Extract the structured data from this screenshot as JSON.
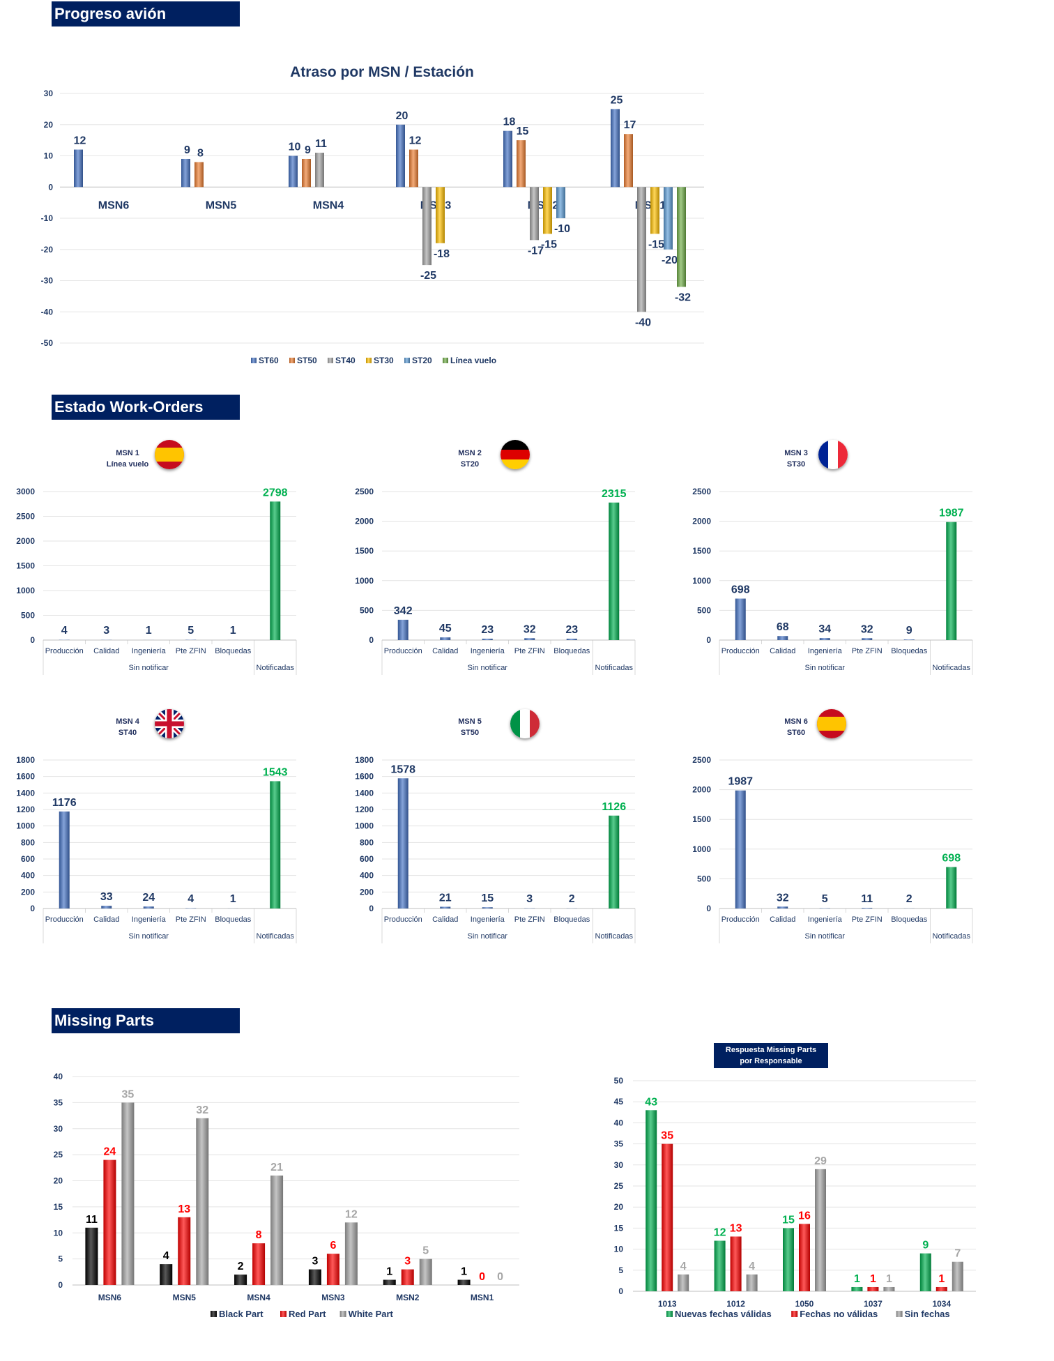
{
  "sections": {
    "progreso": "Progreso avión",
    "estado": "Estado Work-Orders",
    "missing": "Missing Parts"
  },
  "colors": {
    "header_bg": "#002060",
    "ST60": "#4472c4",
    "ST50": "#ed7d31",
    "ST40": "#a5a5a5",
    "ST30": "#ffc000",
    "ST20": "#5b9bd5",
    "Linea vuelo": "#70ad47",
    "wo_blue": "#4472c4",
    "wo_green": "#00b050",
    "black_part": "#000000",
    "red_part": "#ff0000",
    "white_part": "#a6a6a6",
    "green_resp": "#00b050"
  },
  "chart_data": [
    {
      "id": "atraso",
      "type": "bar",
      "title": "Atraso por MSN / Estación",
      "categories": [
        "MSN6",
        "MSN5",
        "MSN4",
        "MSN3",
        "MSN2",
        "MSN1"
      ],
      "ylim": [
        -50,
        30
      ],
      "yticks": [
        30,
        20,
        10,
        0,
        -10,
        -20,
        -30,
        -40,
        -50
      ],
      "grid": true,
      "legend_position": "bottom",
      "series": [
        {
          "name": "ST60",
          "values": [
            12,
            9,
            10,
            20,
            18,
            25
          ]
        },
        {
          "name": "ST50",
          "values": [
            null,
            8,
            9,
            12,
            15,
            17
          ]
        },
        {
          "name": "ST40",
          "values": [
            null,
            null,
            11,
            -25,
            -17,
            -40
          ]
        },
        {
          "name": "ST30",
          "values": [
            null,
            null,
            null,
            -18,
            -15,
            -15
          ]
        },
        {
          "name": "ST20",
          "values": [
            null,
            null,
            null,
            null,
            -10,
            -20
          ]
        },
        {
          "name": "Línea vuelo",
          "values": [
            null,
            null,
            null,
            null,
            null,
            -32
          ]
        }
      ]
    },
    {
      "id": "wo1",
      "type": "bar",
      "msn": "MSN 1",
      "station": "Línea vuelo",
      "flag": "es",
      "categories": [
        "Producción",
        "Calidad",
        "Ingeniería",
        "Pte ZFIN",
        "Bloquedas",
        "Notificadas"
      ],
      "group_label": "Sin notificar",
      "values": [
        4,
        3,
        1,
        5,
        1,
        2798
      ],
      "ylim": [
        0,
        3000
      ],
      "yticks": [
        0,
        500,
        1000,
        1500,
        2000,
        2500,
        3000
      ]
    },
    {
      "id": "wo2",
      "type": "bar",
      "msn": "MSN 2",
      "station": "ST20",
      "flag": "de",
      "categories": [
        "Producción",
        "Calidad",
        "Ingeniería",
        "Pte ZFIN",
        "Bloquedas",
        "Notificadas"
      ],
      "group_label": "Sin notificar",
      "values": [
        342,
        45,
        23,
        32,
        23,
        2315
      ],
      "ylim": [
        0,
        2500
      ],
      "yticks": [
        0,
        500,
        1000,
        1500,
        2000,
        2500
      ]
    },
    {
      "id": "wo3",
      "type": "bar",
      "msn": "MSN 3",
      "station": "ST30",
      "flag": "fr",
      "categories": [
        "Producción",
        "Calidad",
        "Ingeniería",
        "Pte ZFIN",
        "Bloquedas",
        "Notificadas"
      ],
      "group_label": "Sin notificar",
      "values": [
        698,
        68,
        34,
        32,
        9,
        1987
      ],
      "ylim": [
        0,
        2500
      ],
      "yticks": [
        0,
        500,
        1000,
        1500,
        2000,
        2500
      ]
    },
    {
      "id": "wo4",
      "type": "bar",
      "msn": "MSN 4",
      "station": "ST40",
      "flag": "uk",
      "categories": [
        "Producción",
        "Calidad",
        "Ingeniería",
        "Pte ZFIN",
        "Bloquedas",
        "Notificadas"
      ],
      "group_label": "Sin notificar",
      "values": [
        1176,
        33,
        24,
        4,
        1,
        1543
      ],
      "ylim": [
        0,
        1800
      ],
      "yticks": [
        0,
        200,
        400,
        600,
        800,
        1000,
        1200,
        1400,
        1600,
        1800
      ]
    },
    {
      "id": "wo5",
      "type": "bar",
      "msn": "MSN 5",
      "station": "ST50",
      "flag": "it",
      "categories": [
        "Producción",
        "Calidad",
        "Ingeniería",
        "Pte ZFIN",
        "Bloquedas",
        "Notificadas"
      ],
      "group_label": "Sin notificar",
      "values": [
        1578,
        21,
        15,
        3,
        2,
        1126
      ],
      "ylim": [
        0,
        1800
      ],
      "yticks": [
        0,
        200,
        400,
        600,
        800,
        1000,
        1200,
        1400,
        1600,
        1800
      ]
    },
    {
      "id": "wo6",
      "type": "bar",
      "msn": "MSN 6",
      "station": "ST60",
      "flag": "es",
      "categories": [
        "Producción",
        "Calidad",
        "Ingeniería",
        "Pte ZFIN",
        "Bloquedas",
        "Notificadas"
      ],
      "group_label": "Sin notificar",
      "values": [
        1987,
        32,
        5,
        11,
        2,
        698
      ],
      "ylim": [
        0,
        2500
      ],
      "yticks": [
        0,
        500,
        1000,
        1500,
        2000,
        2500
      ]
    },
    {
      "id": "mp1",
      "type": "bar",
      "categories": [
        "MSN6",
        "MSN5",
        "MSN4",
        "MSN3",
        "MSN2",
        "MSN1"
      ],
      "ylim": [
        0,
        40
      ],
      "yticks": [
        0,
        5,
        10,
        15,
        20,
        25,
        30,
        35,
        40
      ],
      "legend_position": "bottom",
      "series": [
        {
          "name": "Black Part",
          "values": [
            11,
            4,
            2,
            3,
            1,
            1
          ]
        },
        {
          "name": "Red Part",
          "values": [
            24,
            13,
            8,
            6,
            3,
            0
          ]
        },
        {
          "name": "White Part",
          "values": [
            35,
            32,
            21,
            12,
            5,
            0
          ]
        }
      ]
    },
    {
      "id": "mp2",
      "type": "bar",
      "title_lines": [
        "Respuesta Missing Parts",
        "por Responsable"
      ],
      "categories": [
        "1013",
        "1012",
        "1050",
        "1037",
        "1034"
      ],
      "ylim": [
        0,
        50
      ],
      "yticks": [
        0,
        5,
        10,
        15,
        20,
        25,
        30,
        35,
        40,
        45,
        50
      ],
      "legend_position": "bottom",
      "series": [
        {
          "name": "Nuevas fechas válidas",
          "values": [
            43,
            12,
            15,
            1,
            9
          ]
        },
        {
          "name": "Fechas no válidas",
          "values": [
            35,
            13,
            16,
            1,
            1
          ]
        },
        {
          "name": "Sin fechas",
          "values": [
            4,
            4,
            29,
            1,
            7
          ]
        }
      ]
    }
  ]
}
